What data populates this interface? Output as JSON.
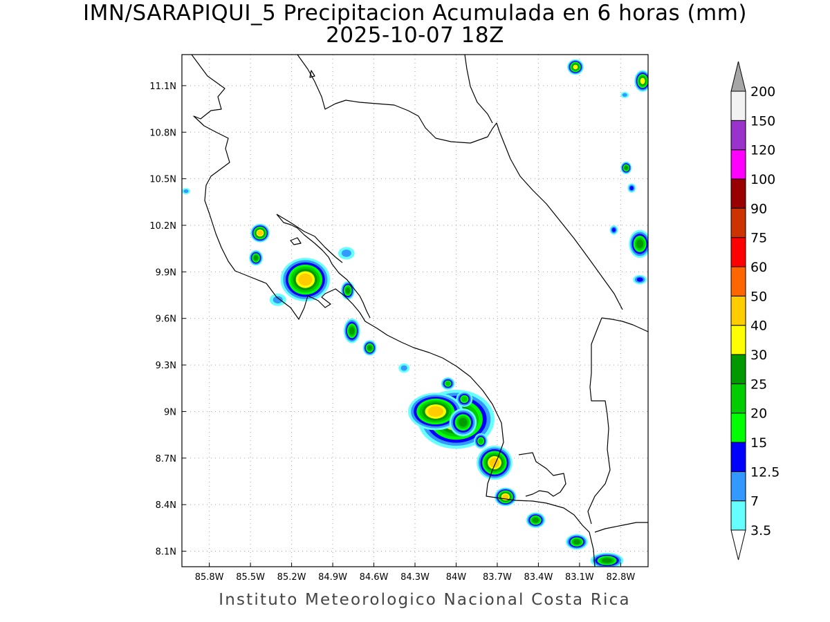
{
  "title": {
    "line1": "IMN/SARAPIQUI_5 Precipitacion Acumulada en 6 horas (mm)",
    "line2": "2025-10-07 18Z"
  },
  "credit": "Instituto Meteorologico Nacional Costa Rica",
  "map": {
    "lon_range": [
      -86.0,
      -82.6
    ],
    "lat_range": [
      8.0,
      11.3
    ],
    "x_ticks": [
      "85.8W",
      "85.5W",
      "85.2W",
      "84.9W",
      "84.6W",
      "84.3W",
      "84W",
      "83.7W",
      "83.4W",
      "83.1W",
      "82.8W"
    ],
    "x_tick_values": [
      -85.8,
      -85.5,
      -85.2,
      -84.9,
      -84.6,
      -84.3,
      -84.0,
      -83.7,
      -83.4,
      -83.1,
      -82.8
    ],
    "y_ticks": [
      "8.1N",
      "8.4N",
      "8.7N",
      "9N",
      "9.3N",
      "9.6N",
      "9.9N",
      "10.2N",
      "10.5N",
      "10.8N",
      "11.1N"
    ],
    "y_tick_values": [
      8.1,
      8.4,
      8.7,
      9.0,
      9.3,
      9.6,
      9.9,
      10.2,
      10.5,
      10.8,
      11.1
    ],
    "grid": true,
    "precip_cells": [
      {
        "lon": -84.0,
        "lat": 8.95,
        "rx": 0.28,
        "ry": 0.19,
        "max_mm": 40
      },
      {
        "lon": -84.15,
        "lat": 9.0,
        "rx": 0.2,
        "ry": 0.12,
        "max_mm": 40
      },
      {
        "lon": -84.06,
        "lat": 9.18,
        "rx": 0.05,
        "ry": 0.04,
        "max_mm": 20
      },
      {
        "lon": -83.94,
        "lat": 9.08,
        "rx": 0.06,
        "ry": 0.05,
        "max_mm": 20
      },
      {
        "lon": -83.95,
        "lat": 8.93,
        "rx": 0.1,
        "ry": 0.09,
        "max_mm": 25
      },
      {
        "lon": -83.82,
        "lat": 8.81,
        "rx": 0.05,
        "ry": 0.05,
        "max_mm": 20
      },
      {
        "lon": -83.72,
        "lat": 8.67,
        "rx": 0.13,
        "ry": 0.11,
        "max_mm": 40
      },
      {
        "lon": -83.64,
        "lat": 8.45,
        "rx": 0.08,
        "ry": 0.06,
        "max_mm": 40
      },
      {
        "lon": -83.42,
        "lat": 8.3,
        "rx": 0.07,
        "ry": 0.05,
        "max_mm": 25
      },
      {
        "lon": -83.12,
        "lat": 8.16,
        "rx": 0.08,
        "ry": 0.05,
        "max_mm": 25
      },
      {
        "lon": -82.9,
        "lat": 8.04,
        "rx": 0.12,
        "ry": 0.05,
        "max_mm": 25
      },
      {
        "lon": -85.1,
        "lat": 9.85,
        "rx": 0.18,
        "ry": 0.14,
        "max_mm": 40
      },
      {
        "lon": -85.43,
        "lat": 10.15,
        "rx": 0.07,
        "ry": 0.06,
        "max_mm": 40
      },
      {
        "lon": -85.46,
        "lat": 9.99,
        "rx": 0.05,
        "ry": 0.05,
        "max_mm": 25
      },
      {
        "lon": -84.79,
        "lat": 9.78,
        "rx": 0.05,
        "ry": 0.06,
        "max_mm": 25
      },
      {
        "lon": -84.76,
        "lat": 9.52,
        "rx": 0.06,
        "ry": 0.08,
        "max_mm": 25
      },
      {
        "lon": -84.63,
        "lat": 9.41,
        "rx": 0.05,
        "ry": 0.05,
        "max_mm": 25
      },
      {
        "lon": -84.8,
        "lat": 10.02,
        "rx": 0.06,
        "ry": 0.04,
        "max_mm": 7
      },
      {
        "lon": -85.3,
        "lat": 9.72,
        "rx": 0.06,
        "ry": 0.04,
        "max_mm": 7
      },
      {
        "lon": -84.38,
        "lat": 9.28,
        "rx": 0.04,
        "ry": 0.03,
        "max_mm": 7
      },
      {
        "lon": -83.13,
        "lat": 11.22,
        "rx": 0.06,
        "ry": 0.05,
        "max_mm": 30
      },
      {
        "lon": -82.64,
        "lat": 11.13,
        "rx": 0.06,
        "ry": 0.07,
        "max_mm": 30
      },
      {
        "lon": -82.76,
        "lat": 10.57,
        "rx": 0.04,
        "ry": 0.04,
        "max_mm": 25
      },
      {
        "lon": -82.66,
        "lat": 10.08,
        "rx": 0.08,
        "ry": 0.09,
        "max_mm": 25
      },
      {
        "lon": -82.66,
        "lat": 9.85,
        "rx": 0.05,
        "ry": 0.03,
        "max_mm": 12.5
      },
      {
        "lon": -82.85,
        "lat": 10.17,
        "rx": 0.03,
        "ry": 0.03,
        "max_mm": 12.5
      },
      {
        "lon": -82.72,
        "lat": 10.44,
        "rx": 0.03,
        "ry": 0.03,
        "max_mm": 12.5
      },
      {
        "lon": -82.77,
        "lat": 11.04,
        "rx": 0.03,
        "ry": 0.02,
        "max_mm": 7
      },
      {
        "lon": -85.97,
        "lat": 10.42,
        "rx": 0.03,
        "ry": 0.02,
        "max_mm": 7
      }
    ]
  },
  "colorbar": {
    "levels": [
      "3.5",
      "7",
      "12.5",
      "15",
      "20",
      "25",
      "30",
      "40",
      "50",
      "60",
      "75",
      "90",
      "100",
      "120",
      "150",
      "200"
    ],
    "level_values": [
      3.5,
      7,
      12.5,
      15,
      20,
      25,
      30,
      40,
      50,
      60,
      75,
      90,
      100,
      120,
      150,
      200
    ],
    "colors": [
      "#ffffff",
      "#66ffff",
      "#3399ff",
      "#0000ff",
      "#00ff00",
      "#00cc00",
      "#009900",
      "#ffff00",
      "#ffcc00",
      "#ff6600",
      "#ff0000",
      "#cc3300",
      "#990000",
      "#ff00ff",
      "#9933cc",
      "#f2f2f2",
      "#a6a6a6"
    ]
  },
  "colors": {
    "coastline": "#000000",
    "grid": "#a0a0a0",
    "frame": "#000000"
  }
}
